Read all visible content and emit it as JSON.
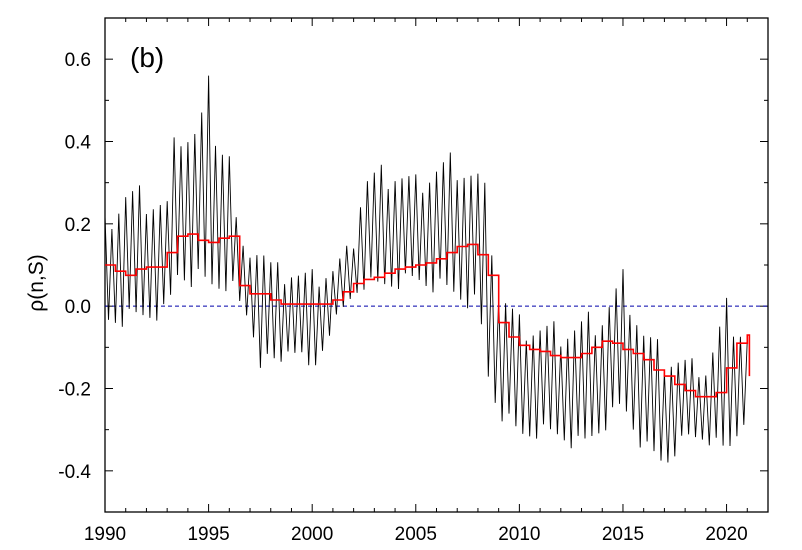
{
  "chart_data": {
    "type": "line",
    "panel_label": "(b)",
    "title": "",
    "xlabel": "",
    "ylabel": "ρ(n,S)",
    "xlim": [
      1990,
      2022
    ],
    "ylim": [
      -0.5,
      0.7
    ],
    "x_ticks": [
      1990,
      1995,
      2000,
      2005,
      2010,
      2015,
      2020
    ],
    "y_ticks": [
      -0.4,
      -0.2,
      0.0,
      0.2,
      0.4,
      0.6
    ],
    "y_tick_labels": [
      "-0.4",
      "-0.2",
      "0.0",
      "0.2",
      "0.4",
      "0.6"
    ],
    "x_tick_labels": [
      "1990",
      "1995",
      "2000",
      "2005",
      "2010",
      "2015",
      "2020"
    ],
    "reference_line": {
      "y": 0.0,
      "style": "dashed",
      "color": "#0000aa"
    },
    "grid": false,
    "colors": {
      "monthly": "#000000",
      "yearly": "#ff0000"
    },
    "yearly_step": {
      "x": [
        1990.0,
        1990.5,
        1991.0,
        1991.5,
        1992.0,
        1992.5,
        1993.0,
        1993.5,
        1994.0,
        1994.5,
        1995.0,
        1995.5,
        1996.0,
        1996.5,
        1997.0,
        1997.5,
        1998.0,
        1998.5,
        1999.0,
        1999.5,
        2000.0,
        2000.5,
        2001.0,
        2001.5,
        2002.0,
        2002.5,
        2003.0,
        2003.5,
        2004.0,
        2004.5,
        2005.0,
        2005.5,
        2006.0,
        2006.5,
        2007.0,
        2007.5,
        2008.0,
        2008.5,
        2009.0,
        2009.5,
        2010.0,
        2010.5,
        2011.0,
        2011.5,
        2012.0,
        2012.5,
        2013.0,
        2013.5,
        2014.0,
        2014.5,
        2015.0,
        2015.5,
        2016.0,
        2016.5,
        2017.0,
        2017.5,
        2018.0,
        2018.5,
        2019.0,
        2019.5,
        2020.0,
        2020.5,
        2021.0
      ],
      "y": [
        0.1,
        0.085,
        0.075,
        0.09,
        0.095,
        0.095,
        0.13,
        0.17,
        0.175,
        0.16,
        0.155,
        0.165,
        0.17,
        0.05,
        0.03,
        0.03,
        0.015,
        0.005,
        0.005,
        0.005,
        0.005,
        0.005,
        0.015,
        0.035,
        0.055,
        0.065,
        0.07,
        0.08,
        0.09,
        0.095,
        0.1,
        0.105,
        0.115,
        0.13,
        0.145,
        0.15,
        0.125,
        0.075,
        -0.04,
        -0.075,
        -0.095,
        -0.105,
        -0.11,
        -0.12,
        -0.125,
        -0.125,
        -0.115,
        -0.1,
        -0.085,
        -0.09,
        -0.105,
        -0.115,
        -0.13,
        -0.155,
        -0.17,
        -0.19,
        -0.205,
        -0.22,
        -0.22,
        -0.21,
        -0.15,
        -0.09,
        -0.07
      ]
    },
    "yearly_end": {
      "x": 2021.1,
      "y": -0.17
    },
    "monthly_envelope": {
      "x": [
        1990.0,
        1991.0,
        1992.0,
        1993.0,
        1993.5,
        1994.0,
        1994.5,
        1995.0,
        1995.5,
        1996.0,
        1996.5,
        1997.0,
        1997.5,
        1998.0,
        1998.5,
        1999.0,
        2000.0,
        2001.0,
        2002.0,
        2002.5,
        2003.0,
        2004.0,
        2005.0,
        2006.0,
        2007.0,
        2008.0,
        2008.5,
        2009.0,
        2010.0,
        2011.0,
        2012.0,
        2013.0,
        2014.0,
        2015.0,
        2016.0,
        2017.0,
        2018.0,
        2019.0,
        2020.0,
        2021.0
      ],
      "high": [
        0.22,
        0.3,
        0.29,
        0.27,
        0.48,
        0.46,
        0.46,
        0.56,
        0.44,
        0.4,
        0.14,
        0.16,
        0.17,
        0.12,
        0.1,
        0.1,
        0.09,
        0.1,
        0.17,
        0.33,
        0.34,
        0.35,
        0.32,
        0.36,
        0.38,
        0.34,
        0.28,
        0.07,
        -0.02,
        -0.03,
        -0.04,
        -0.02,
        0.0,
        0.09,
        -0.04,
        -0.1,
        -0.12,
        -0.14,
        0.02,
        -0.06
      ],
      "low": [
        -0.05,
        -0.05,
        -0.04,
        -0.03,
        0.05,
        0.05,
        0.04,
        0.02,
        0.03,
        0.04,
        0.0,
        -0.05,
        -0.15,
        -0.15,
        -0.15,
        -0.1,
        -0.18,
        -0.05,
        0.02,
        0.04,
        0.03,
        0.04,
        0.05,
        0.03,
        0.01,
        -0.02,
        -0.2,
        -0.27,
        -0.33,
        -0.32,
        -0.33,
        -0.36,
        -0.31,
        -0.26,
        -0.36,
        -0.4,
        -0.33,
        -0.33,
        -0.38,
        -0.27
      ]
    }
  }
}
